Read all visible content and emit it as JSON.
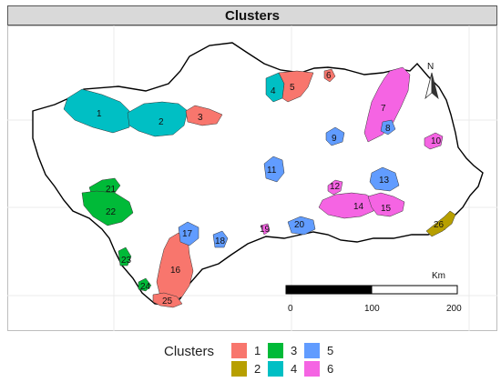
{
  "title": "Clusters",
  "legend": {
    "title": "Clusters",
    "items": [
      {
        "label": "1",
        "color": "#f8766d"
      },
      {
        "label": "2",
        "color": "#b79f00"
      },
      {
        "label": "3",
        "color": "#00ba38"
      },
      {
        "label": "4",
        "color": "#00bfc4"
      },
      {
        "label": "5",
        "color": "#619cff"
      },
      {
        "label": "6",
        "color": "#f564e3"
      }
    ]
  },
  "scale": {
    "unit": "Km",
    "ticks": [
      "0",
      "100",
      "200"
    ]
  },
  "north_label": "N",
  "regions": [
    {
      "id": "1",
      "cluster": "4"
    },
    {
      "id": "2",
      "cluster": "4"
    },
    {
      "id": "3",
      "cluster": "1"
    },
    {
      "id": "4",
      "cluster": "4"
    },
    {
      "id": "5",
      "cluster": "1"
    },
    {
      "id": "6",
      "cluster": "1"
    },
    {
      "id": "7",
      "cluster": "6"
    },
    {
      "id": "8",
      "cluster": "5"
    },
    {
      "id": "9",
      "cluster": "5"
    },
    {
      "id": "10",
      "cluster": "6"
    },
    {
      "id": "11",
      "cluster": "5"
    },
    {
      "id": "12",
      "cluster": "6"
    },
    {
      "id": "13",
      "cluster": "5"
    },
    {
      "id": "14",
      "cluster": "6"
    },
    {
      "id": "15",
      "cluster": "6"
    },
    {
      "id": "16",
      "cluster": "1"
    },
    {
      "id": "17",
      "cluster": "5"
    },
    {
      "id": "18",
      "cluster": "5"
    },
    {
      "id": "19",
      "cluster": "6"
    },
    {
      "id": "20",
      "cluster": "5"
    },
    {
      "id": "21",
      "cluster": "3"
    },
    {
      "id": "22",
      "cluster": "3"
    },
    {
      "id": "23",
      "cluster": "3"
    },
    {
      "id": "24",
      "cluster": "3"
    },
    {
      "id": "25",
      "cluster": "1"
    },
    {
      "id": "26",
      "cluster": "2"
    }
  ]
}
